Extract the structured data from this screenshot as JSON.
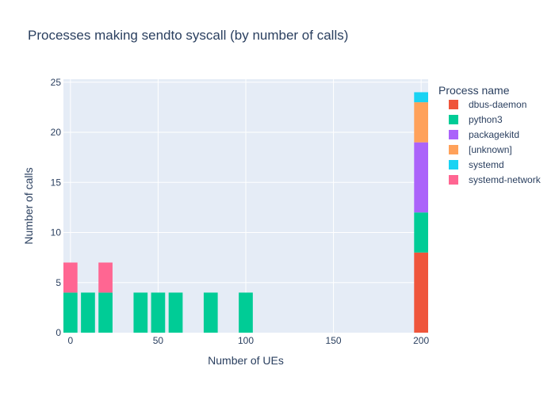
{
  "chart_data": {
    "type": "bar",
    "barmode": "stack",
    "title": "Processes making sendto syscall (by number of calls)",
    "xlabel": "Number of UEs",
    "ylabel": "Number of calls",
    "xlim": [
      -4,
      204
    ],
    "ylim": [
      0,
      25.3
    ],
    "xticks": [
      0,
      50,
      100,
      150,
      200
    ],
    "yticks": [
      0,
      5,
      10,
      15,
      20,
      25
    ],
    "grid": true,
    "legend": {
      "title": "Process name",
      "position": "right"
    },
    "series": [
      {
        "name": "dbus-daemon",
        "color": "#EF553B",
        "x": [
          200
        ],
        "values": [
          8
        ]
      },
      {
        "name": "python3",
        "color": "#00CC96",
        "x": [
          0,
          10,
          20,
          40,
          50,
          60,
          80,
          100,
          200
        ],
        "values": [
          4,
          4,
          4,
          4,
          4,
          4,
          4,
          4,
          4
        ]
      },
      {
        "name": "packagekitd",
        "color": "#AB63FA",
        "x": [
          200
        ],
        "values": [
          7
        ]
      },
      {
        "name": "[unknown]",
        "color": "#FFA15A",
        "x": [
          200
        ],
        "values": [
          4
        ]
      },
      {
        "name": "systemd",
        "color": "#19D3F3",
        "x": [
          200
        ],
        "values": [
          1
        ]
      },
      {
        "name": "systemd-network",
        "color": "#FF6692",
        "x": [
          0,
          20
        ],
        "values": [
          3,
          3
        ]
      }
    ]
  }
}
